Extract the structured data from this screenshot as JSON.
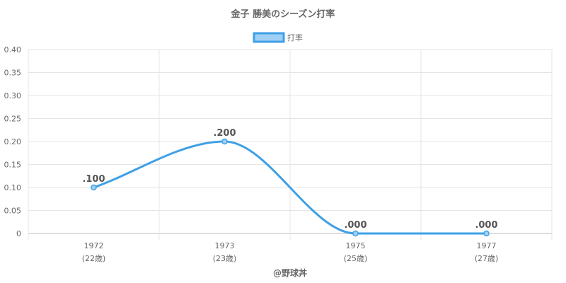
{
  "chart_data": {
    "type": "line",
    "title": "金子 勝美のシーズン打率",
    "categories": [
      "1972",
      "1973",
      "1975",
      "1977"
    ],
    "category_sublabels": [
      "(22歳)",
      "(23歳)",
      "(25歳)",
      "(27歳)"
    ],
    "series": [
      {
        "name": "打率",
        "values": [
          0.1,
          0.2,
          0.0,
          0.0
        ],
        "labels": [
          ".100",
          ".200",
          ".000",
          ".000"
        ]
      }
    ],
    "ylim": [
      0,
      0.4
    ],
    "yticks": [
      "0",
      "0.05",
      "0.10",
      "0.15",
      "0.20",
      "0.25",
      "0.30",
      "0.35",
      "0.40"
    ],
    "grid": true,
    "legend": "top-center",
    "line_color": "#3fa0e6",
    "fill_color": "#a0d0f5",
    "credit": "@野球丼"
  }
}
